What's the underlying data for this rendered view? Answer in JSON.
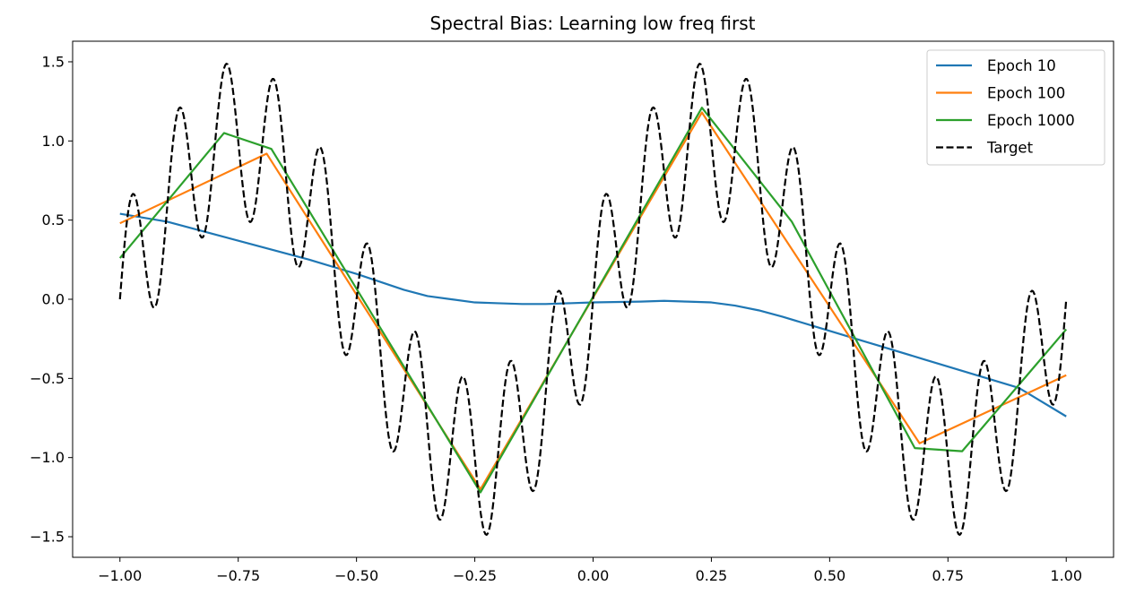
{
  "chart_data": {
    "type": "line",
    "title": "Spectral Bias: Learning low freq first",
    "xlabel": "",
    "ylabel": "",
    "xlim": [
      -1.1,
      1.1
    ],
    "ylim": [
      -1.63,
      1.63
    ],
    "grid": false,
    "legend_position": "top-right",
    "x_ticks": [
      -1.0,
      -0.75,
      -0.5,
      -0.25,
      0.0,
      0.25,
      0.5,
      0.75,
      1.0
    ],
    "x_tick_labels": [
      "−1.00",
      "−0.75",
      "−0.50",
      "−0.25",
      "0.00",
      "0.25",
      "0.50",
      "0.75",
      "1.00"
    ],
    "y_ticks": [
      -1.5,
      -1.0,
      -0.5,
      0.0,
      0.5,
      1.0,
      1.5
    ],
    "y_tick_labels": [
      "−1.5",
      "−1.0",
      "−0.5",
      "0.0",
      "0.5",
      "1.0",
      "1.5"
    ],
    "series": [
      {
        "name": "Epoch 10",
        "color": "#1f77b4",
        "dash": "solid",
        "x": [
          -1.0,
          -0.9,
          -0.8,
          -0.7,
          -0.6,
          -0.5,
          -0.45,
          -0.4,
          -0.35,
          -0.3,
          -0.25,
          -0.2,
          -0.15,
          -0.1,
          0.0,
          0.1,
          0.15,
          0.2,
          0.25,
          0.3,
          0.35,
          0.4,
          0.5,
          0.6,
          0.7,
          0.8,
          0.9,
          1.0
        ],
        "y": [
          0.54,
          0.49,
          0.41,
          0.33,
          0.25,
          0.16,
          0.11,
          0.06,
          0.02,
          0.0,
          -0.02,
          -0.025,
          -0.03,
          -0.03,
          -0.02,
          -0.015,
          -0.01,
          -0.015,
          -0.02,
          -0.04,
          -0.07,
          -0.11,
          -0.2,
          -0.29,
          -0.38,
          -0.47,
          -0.56,
          -0.74
        ]
      },
      {
        "name": "Epoch 100",
        "color": "#ff7f0e",
        "dash": "solid",
        "x": [
          -1.0,
          -0.69,
          -0.238,
          0.23,
          0.69,
          1.0
        ],
        "y": [
          0.48,
          0.92,
          -1.2,
          1.18,
          -0.91,
          -0.48
        ]
      },
      {
        "name": "Epoch 1000",
        "color": "#2ca02c",
        "dash": "solid",
        "x": [
          -1.0,
          -0.78,
          -0.68,
          -0.238,
          0.23,
          0.42,
          0.68,
          0.78,
          1.0
        ],
        "y": [
          0.26,
          1.05,
          0.95,
          -1.22,
          1.21,
          0.49,
          -0.94,
          -0.96,
          -0.19
        ]
      },
      {
        "name": "Target",
        "color": "#000000",
        "dash": "dashed",
        "formula": "sin(2*pi*x) + 0.5*sin(20*pi*x)",
        "x_range": [
          -1.0,
          1.0
        ],
        "samples": 800
      }
    ],
    "legend": [
      "Epoch 10",
      "Epoch 100",
      "Epoch 1000",
      "Target"
    ]
  }
}
